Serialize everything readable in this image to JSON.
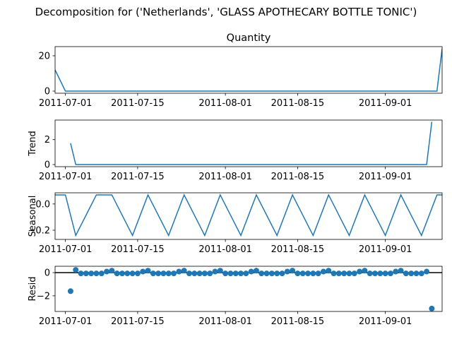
{
  "chart_data": {
    "type": "line",
    "title": "Decomposition for ('Netherlands', 'GLASS APOTHECARY BOTTLE TONIC')",
    "colors": {
      "line": "#1f77b4",
      "zero_line": "#000000",
      "axes": "#000000"
    },
    "xlim": [
      "2011-06-29",
      "2011-09-12"
    ],
    "x_ticks": [
      "2011-07-01",
      "2011-07-15",
      "2011-08-01",
      "2011-08-15",
      "2011-09-01"
    ],
    "panels": [
      {
        "key": "observed",
        "title": "Quantity",
        "ylabel": "",
        "style": "line",
        "ylim": [
          -1.2,
          25.2
        ],
        "y_ticks": [
          0,
          20
        ],
        "x": [
          "2011-06-29",
          "2011-07-01",
          "2011-09-11",
          "2011-09-12"
        ],
        "values": [
          12,
          0,
          0,
          24
        ]
      },
      {
        "key": "trend",
        "title": "",
        "ylabel": "Trend",
        "style": "line",
        "ylim": [
          -0.17,
          3.57
        ],
        "y_ticks": [
          0,
          2
        ],
        "x": [
          "2011-07-02",
          "2011-07-03",
          "2011-09-09",
          "2011-09-10"
        ],
        "values": [
          1.71,
          0,
          0,
          3.43
        ]
      },
      {
        "key": "seasonal",
        "title": "",
        "ylabel": "Seasonal",
        "style": "line",
        "ylim": [
          -0.27,
          0.085
        ],
        "y_ticks": [
          0.0,
          -0.2
        ],
        "y_tick_labels": [
          "0.0",
          "−0.2"
        ],
        "x": [
          "2011-06-29",
          "2011-07-01",
          "2011-07-03",
          "2011-07-07",
          "2011-07-10",
          "2011-07-14",
          "2011-07-17",
          "2011-07-21",
          "2011-07-24",
          "2011-07-28",
          "2011-07-31",
          "2011-08-04",
          "2011-08-07",
          "2011-08-11",
          "2011-08-14",
          "2011-08-18",
          "2011-08-21",
          "2011-08-25",
          "2011-08-28",
          "2011-09-01",
          "2011-09-04",
          "2011-09-08",
          "2011-09-11",
          "2011-09-12"
        ],
        "values": [
          0.069,
          0.069,
          -0.24,
          0.069,
          0.069,
          -0.24,
          0.069,
          -0.24,
          0.069,
          -0.24,
          0.069,
          -0.24,
          0.069,
          -0.24,
          0.069,
          -0.24,
          0.069,
          -0.24,
          0.069,
          -0.24,
          0.069,
          -0.24,
          0.069,
          0.069
        ]
      },
      {
        "key": "resid",
        "title": "",
        "ylabel": "Resid",
        "style": "scatter",
        "ylim": [
          -3.35,
          0.55
        ],
        "y_ticks": [
          0,
          -2
        ],
        "y_tick_labels": [
          "0",
          "−2"
        ],
        "zero_line": true,
        "x": [
          "2011-07-02",
          "2011-07-03",
          "2011-07-04",
          "2011-07-05",
          "2011-07-06",
          "2011-07-07",
          "2011-07-08",
          "2011-07-09",
          "2011-07-10",
          "2011-07-11",
          "2011-07-12",
          "2011-07-13",
          "2011-07-14",
          "2011-07-15",
          "2011-07-16",
          "2011-07-17",
          "2011-07-18",
          "2011-07-19",
          "2011-07-20",
          "2011-07-21",
          "2011-07-22",
          "2011-07-23",
          "2011-07-24",
          "2011-07-25",
          "2011-07-26",
          "2011-07-27",
          "2011-07-28",
          "2011-07-29",
          "2011-07-30",
          "2011-07-31",
          "2011-08-01",
          "2011-08-02",
          "2011-08-03",
          "2011-08-04",
          "2011-08-05",
          "2011-08-06",
          "2011-08-07",
          "2011-08-08",
          "2011-08-09",
          "2011-08-10",
          "2011-08-11",
          "2011-08-12",
          "2011-08-13",
          "2011-08-14",
          "2011-08-15",
          "2011-08-16",
          "2011-08-17",
          "2011-08-18",
          "2011-08-19",
          "2011-08-20",
          "2011-08-21",
          "2011-08-22",
          "2011-08-23",
          "2011-08-24",
          "2011-08-25",
          "2011-08-26",
          "2011-08-27",
          "2011-08-28",
          "2011-08-29",
          "2011-08-30",
          "2011-08-31",
          "2011-09-01",
          "2011-09-02",
          "2011-09-03",
          "2011-09-04",
          "2011-09-05",
          "2011-09-06",
          "2011-09-07",
          "2011-09-08",
          "2011-09-09",
          "2011-09-10"
        ],
        "values": [
          -1.6,
          0.24,
          -0.07,
          -0.07,
          -0.07,
          -0.07,
          -0.07,
          0.09,
          0.17,
          -0.07,
          -0.07,
          -0.07,
          -0.07,
          -0.07,
          0.09,
          0.17,
          -0.07,
          -0.07,
          -0.07,
          -0.07,
          -0.07,
          0.09,
          0.17,
          -0.07,
          -0.07,
          -0.07,
          -0.07,
          -0.07,
          0.09,
          0.17,
          -0.07,
          -0.07,
          -0.07,
          -0.07,
          -0.07,
          0.09,
          0.17,
          -0.07,
          -0.07,
          -0.07,
          -0.07,
          -0.07,
          0.09,
          0.17,
          -0.07,
          -0.07,
          -0.07,
          -0.07,
          -0.07,
          0.09,
          0.17,
          -0.07,
          -0.07,
          -0.07,
          -0.07,
          -0.07,
          0.09,
          0.17,
          -0.07,
          -0.07,
          -0.07,
          -0.07,
          -0.07,
          0.09,
          0.17,
          -0.07,
          -0.07,
          -0.07,
          -0.07,
          0.09,
          -3.1
        ]
      }
    ]
  }
}
